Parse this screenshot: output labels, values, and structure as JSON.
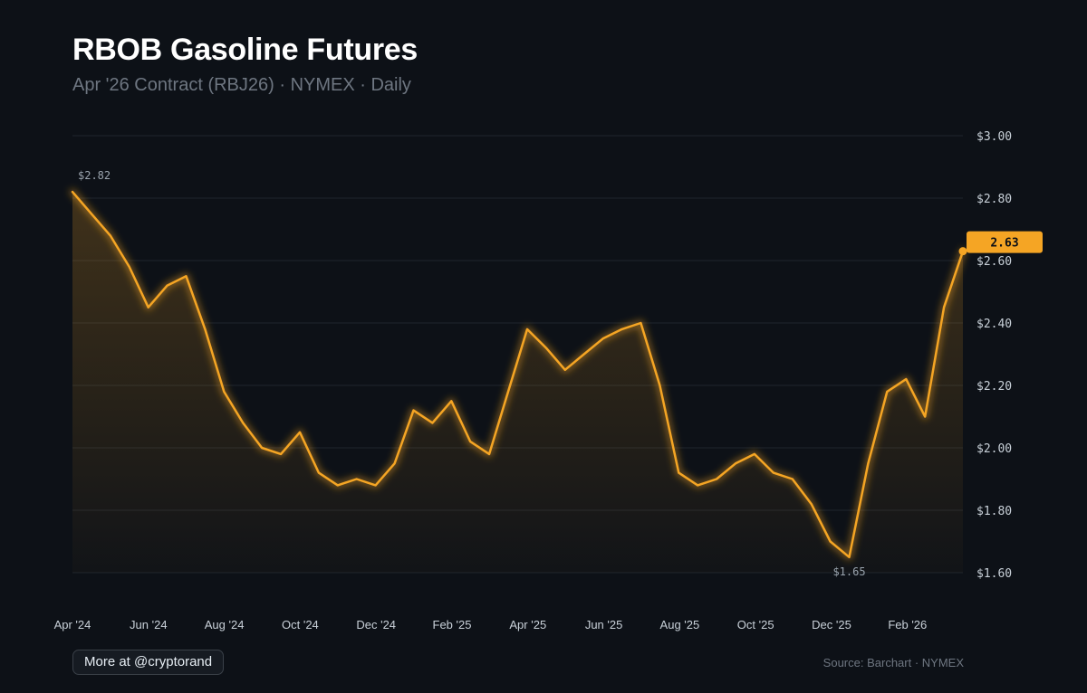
{
  "header": {
    "title": "RBOB Gasoline Futures",
    "subtitle": "Apr '26 Contract (RBJ26) · NYMEX · Daily"
  },
  "footer": {
    "more_label": "More at @cryptorand",
    "source": "Source: Barchart · NYMEX"
  },
  "colors": {
    "background": "#0d1117",
    "line": "#f5a524",
    "grid": "#1f252d",
    "tick_text": "#c9d1d9",
    "badge_text": "#0d1117"
  },
  "chart_data": {
    "type": "line",
    "title": "RBOB Gasoline Futures",
    "subtitle": "Apr '26 Contract (RBJ26) · NYMEX · Daily",
    "xlabel": "",
    "ylabel": "",
    "ylim": [
      1.6,
      3.0
    ],
    "y_ticks": [
      1.6,
      1.8,
      2.0,
      2.2,
      2.4,
      2.6,
      2.8,
      3.0
    ],
    "y_tick_labels": [
      "$1.60",
      "$1.80",
      "$2.00",
      "$2.20",
      "$2.40",
      "$2.60",
      "$2.80",
      "$3.00"
    ],
    "x_tick_labels": [
      "Apr '24",
      "Jun '24",
      "Aug '24",
      "Oct '24",
      "Dec '24",
      "Feb '25",
      "Apr '25",
      "Jun '25",
      "Aug '25",
      "Oct '25",
      "Dec '25",
      "Feb '26"
    ],
    "grid": true,
    "legend": "none",
    "series": [
      {
        "name": "RBJ26",
        "values": [
          2.82,
          2.75,
          2.68,
          2.58,
          2.45,
          2.52,
          2.55,
          2.38,
          2.18,
          2.08,
          2.0,
          1.98,
          2.05,
          1.92,
          1.88,
          1.9,
          1.88,
          1.95,
          2.12,
          2.08,
          2.15,
          2.02,
          1.98,
          2.18,
          2.38,
          2.32,
          2.25,
          2.3,
          2.35,
          2.38,
          2.4,
          2.2,
          1.92,
          1.88,
          1.9,
          1.95,
          1.98,
          1.92,
          1.9,
          1.82,
          1.7,
          1.65,
          1.95,
          2.18,
          2.22,
          2.1,
          2.45,
          2.63
        ]
      }
    ],
    "annotations": {
      "high_label": "$2.82",
      "low_label": "$1.65",
      "last_value_label": "2.63"
    }
  }
}
